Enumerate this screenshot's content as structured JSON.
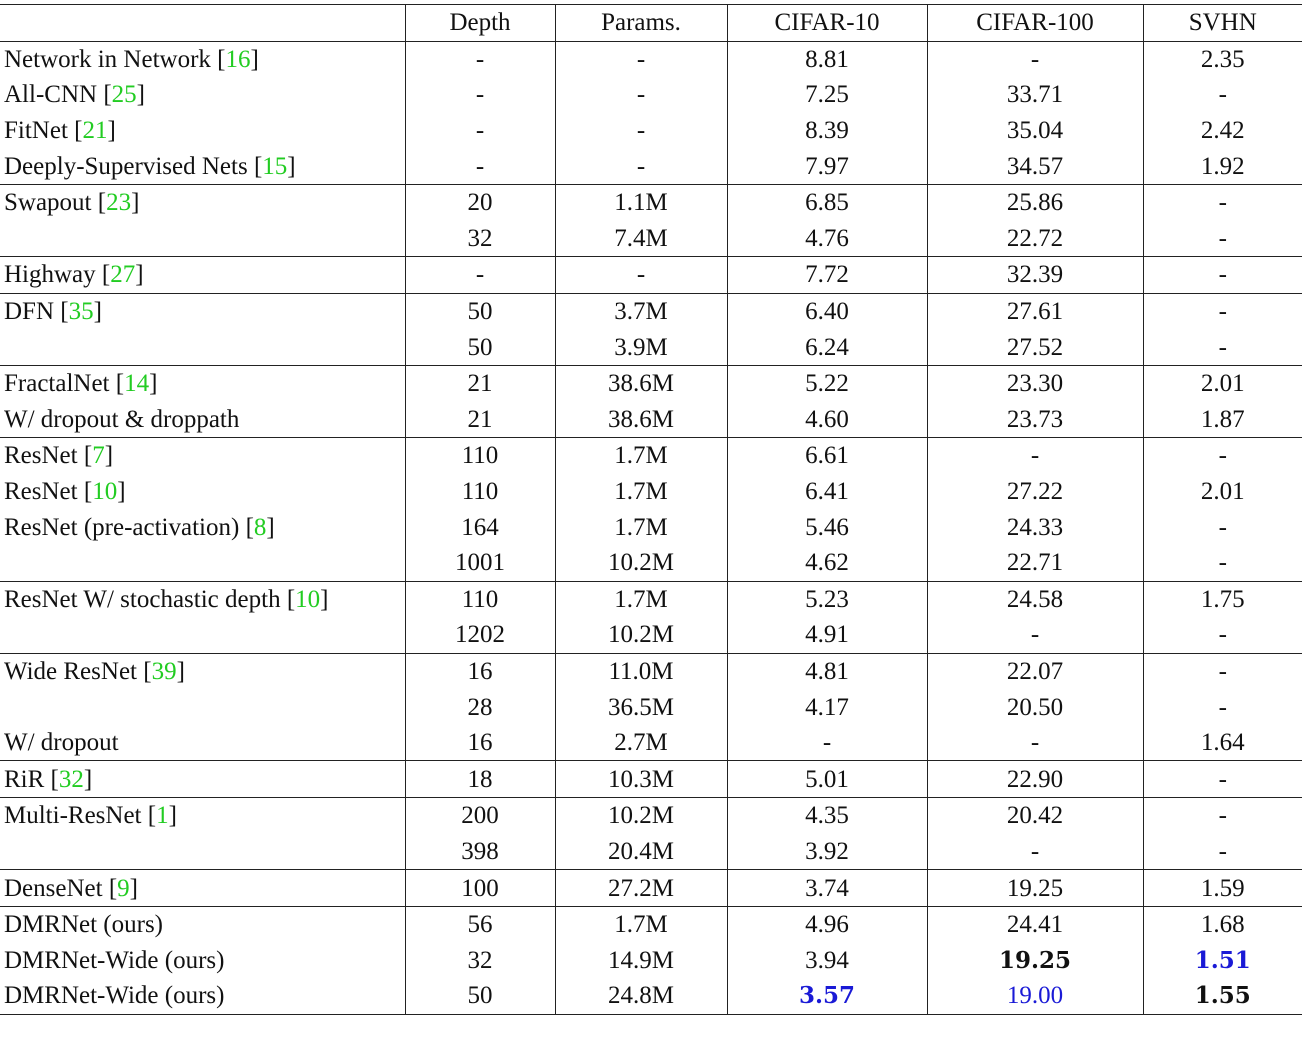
{
  "colors": {
    "citation": "#22cc22",
    "best": "#1a1ad6"
  },
  "columns": [
    "",
    "Depth",
    "Params.",
    "CIFAR-10",
    "CIFAR-100",
    "SVHN"
  ],
  "groups": [
    [
      {
        "method": "Network in Network",
        "ref": "16",
        "cells": [
          "-",
          "-",
          "8.81",
          "-",
          "2.35"
        ]
      },
      {
        "method": "All-CNN",
        "ref": "25",
        "cells": [
          "-",
          "-",
          "7.25",
          "33.71",
          "-"
        ]
      },
      {
        "method": "FitNet",
        "ref": "21",
        "cells": [
          "-",
          "-",
          "8.39",
          "35.04",
          "2.42"
        ]
      },
      {
        "method": "Deeply-Supervised Nets",
        "ref": "15",
        "cells": [
          "-",
          "-",
          "7.97",
          "34.57",
          "1.92"
        ]
      }
    ],
    [
      {
        "method": "Swapout",
        "ref": "23",
        "cells": [
          "20",
          "1.1M",
          "6.85",
          "25.86",
          "-"
        ]
      },
      {
        "method": "",
        "ref": "",
        "cells": [
          "32",
          "7.4M",
          "4.76",
          "22.72",
          "-"
        ]
      }
    ],
    [
      {
        "method": "Highway",
        "ref": "27",
        "cells": [
          "-",
          "-",
          "7.72",
          "32.39",
          "-"
        ]
      }
    ],
    [
      {
        "method": "DFN",
        "ref": "35",
        "cells": [
          "50",
          "3.7M",
          "6.40",
          "27.61",
          "-"
        ]
      },
      {
        "method": "",
        "ref": "",
        "cells": [
          "50",
          "3.9M",
          "6.24",
          "27.52",
          "-"
        ]
      }
    ],
    [
      {
        "method": "FractalNet",
        "ref": "14",
        "cells": [
          "21",
          "38.6M",
          "5.22",
          "23.30",
          "2.01"
        ]
      },
      {
        "method": "W/ dropout & droppath",
        "ref": "",
        "cells": [
          "21",
          "38.6M",
          "4.60",
          "23.73",
          "1.87"
        ]
      }
    ],
    [
      {
        "method": "ResNet",
        "ref": "7",
        "cells": [
          "110",
          "1.7M",
          "6.61",
          "-",
          "-"
        ]
      },
      {
        "method": "ResNet",
        "ref": "10",
        "cells": [
          "110",
          "1.7M",
          "6.41",
          "27.22",
          "2.01"
        ]
      },
      {
        "method": "ResNet (pre-activation)",
        "ref": "8",
        "cells": [
          "164",
          "1.7M",
          "5.46",
          "24.33",
          "-"
        ]
      },
      {
        "method": "",
        "ref": "",
        "cells": [
          "1001",
          "10.2M",
          "4.62",
          "22.71",
          "-"
        ]
      }
    ],
    [
      {
        "method": "ResNet W/ stochastic depth",
        "ref": "10",
        "cells": [
          "110",
          "1.7M",
          "5.23",
          "24.58",
          "1.75"
        ]
      },
      {
        "method": "",
        "ref": "",
        "cells": [
          "1202",
          "10.2M",
          "4.91",
          "-",
          "-"
        ]
      }
    ],
    [
      {
        "method": "Wide ResNet",
        "ref": "39",
        "cells": [
          "16",
          "11.0M",
          "4.81",
          "22.07",
          "-"
        ]
      },
      {
        "method": "",
        "ref": "",
        "cells": [
          "28",
          "36.5M",
          "4.17",
          "20.50",
          "-"
        ]
      },
      {
        "method": "W/ dropout",
        "ref": "",
        "cells": [
          "16",
          "2.7M",
          "-",
          "-",
          "1.64"
        ]
      }
    ],
    [
      {
        "method": "RiR",
        "ref": "32",
        "cells": [
          "18",
          "10.3M",
          "5.01",
          "22.90",
          "-"
        ]
      }
    ],
    [
      {
        "method": "Multi-ResNet",
        "ref": "1",
        "cells": [
          "200",
          "10.2M",
          "4.35",
          "20.42",
          "-"
        ]
      },
      {
        "method": "",
        "ref": "",
        "cells": [
          "398",
          "20.4M",
          "3.92",
          "-",
          "-"
        ]
      }
    ],
    [
      {
        "method": "DenseNet",
        "ref": "9",
        "cells": [
          "100",
          "27.2M",
          "3.74",
          "19.25",
          "1.59"
        ]
      }
    ],
    [
      {
        "method": "DMRNet (ours)",
        "ref": "",
        "cells": [
          "56",
          "1.7M",
          "4.96",
          "24.41",
          "1.68"
        ]
      },
      {
        "method": "DMRNet-Wide (ours)",
        "ref": "",
        "cells": [
          "32",
          "14.9M",
          "3.94",
          "19.25",
          "1.51"
        ],
        "emphasis": [
          "",
          "",
          "",
          "bold",
          "bold-blue"
        ]
      },
      {
        "method": "DMRNet-Wide (ours)",
        "ref": "",
        "cells": [
          "50",
          "24.8M",
          "3.57",
          "19.00",
          "1.55"
        ],
        "emphasis": [
          "",
          "",
          "bold-blue",
          "blue",
          "bold"
        ]
      }
    ]
  ]
}
